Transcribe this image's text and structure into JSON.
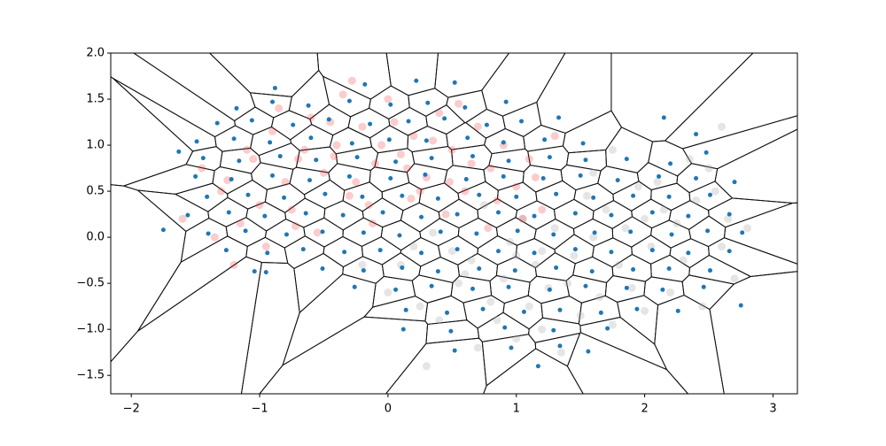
{
  "chart_data": {
    "type": "scatter",
    "xlim": [
      -2.16,
      3.19
    ],
    "ylim": [
      -1.7,
      2.0
    ],
    "xticks": [
      {
        "value": -2,
        "label": "−2"
      },
      {
        "value": -1,
        "label": "−1"
      },
      0,
      1,
      2,
      3
    ],
    "yticks": [
      {
        "value": -1.5,
        "label": "−1.5"
      },
      {
        "value": -1,
        "label": "−1.0"
      },
      {
        "value": -0.5,
        "label": "−0.5"
      },
      {
        "value": 0,
        "label": "0.0"
      },
      0.5,
      {
        "value": 1,
        "label": "1.0"
      },
      1.5,
      {
        "value": 2,
        "label": "2.0"
      }
    ],
    "series": [
      {
        "color": "#aaaaaa",
        "opacity": 0.3,
        "radius": 4.5,
        "x": [
          -0.2,
          0.0,
          0.2,
          0.4,
          0.6,
          0.8,
          1.0,
          1.2,
          1.4,
          1.6,
          1.8,
          2.0,
          2.2,
          2.4,
          2.6,
          2.8,
          0.1,
          0.3,
          0.5,
          0.7,
          0.9,
          1.1,
          1.3,
          1.5,
          1.7,
          1.9,
          2.1,
          2.3,
          2.5,
          2.7,
          0.25,
          0.55,
          0.85,
          1.15,
          1.45,
          1.75,
          2.05,
          2.35,
          2.65,
          1.35,
          0.35,
          0.65,
          0.95,
          1.25,
          1.55,
          1.85,
          2.15,
          2.45,
          1.0,
          1.6,
          1.95,
          2.25,
          2.55,
          1.65,
          1.05,
          0.75,
          2.0,
          1.75,
          2.6,
          1.2
        ],
        "y": [
          -0.3,
          -0.6,
          -0.1,
          -0.9,
          -0.4,
          -0.7,
          -0.2,
          -1.0,
          -0.5,
          0.0,
          -0.3,
          0.2,
          -0.6,
          0.4,
          -0.1,
          0.1,
          -0.3,
          -1.4,
          -0.15,
          -1.2,
          -0.45,
          -0.75,
          0.1,
          -0.85,
          0.3,
          -0.55,
          0.6,
          -0.25,
          0.75,
          -0.45,
          -0.75,
          -0.5,
          -0.9,
          -0.3,
          -0.2,
          -0.95,
          -0.1,
          0.85,
          0.2,
          -1.25,
          0.05,
          -0.25,
          -0.05,
          -0.55,
          0.45,
          0.1,
          0.3,
          -0.75,
          -1.1,
          0.7,
          0.55,
          0.15,
          0.5,
          -0.65,
          0.2,
          0.35,
          -0.8,
          0.95,
          1.2,
          -0.15
        ]
      },
      {
        "color": "#ee3333",
        "opacity": 0.25,
        "radius": 4.5,
        "x": [
          -1.6,
          -1.45,
          -1.3,
          -1.2,
          -1.1,
          -1.0,
          -0.9,
          -0.8,
          -0.7,
          -0.6,
          -0.5,
          -0.4,
          -0.3,
          -0.2,
          -0.1,
          0.0,
          0.1,
          0.2,
          0.3,
          0.4,
          0.5,
          0.6,
          0.7,
          0.8,
          0.9,
          1.0,
          1.1,
          1.2,
          1.3,
          -1.35,
          -1.15,
          -0.95,
          -0.75,
          -0.55,
          -0.35,
          -0.15,
          0.05,
          0.25,
          0.45,
          0.65,
          0.85,
          1.05,
          -0.85,
          -0.65,
          -0.45,
          -0.25,
          -0.05,
          0.15,
          0.35,
          0.55,
          -1.25,
          -1.05,
          -0.72,
          -0.42,
          -0.12,
          0.18,
          0.48,
          0.78,
          1.15,
          -0.28
        ],
        "y": [
          0.2,
          0.75,
          0.5,
          -0.3,
          0.95,
          0.35,
          1.15,
          0.6,
          0.85,
          1.3,
          0.7,
          1.0,
          0.45,
          1.2,
          0.8,
          1.5,
          0.9,
          1.1,
          0.65,
          1.35,
          0.95,
          0.5,
          1.2,
          0.75,
          1.0,
          0.55,
          0.85,
          0.3,
          1.1,
          0.0,
          0.15,
          -0.1,
          0.3,
          0.05,
          1.55,
          0.35,
          1.25,
          0.5,
          0.25,
          0.8,
          0.4,
          0.2,
          1.4,
          0.95,
          1.25,
          0.6,
          1.0,
          0.75,
          1.05,
          1.45,
          0.62,
          0.85,
          0.12,
          0.88,
          0.15,
          0.42,
          0.6,
          0.1,
          0.65,
          1.7
        ]
      },
      {
        "color": "#1f77b4",
        "opacity": 1,
        "radius": 2.5,
        "voronoi": true,
        "x": [
          -0.88,
          -0.18,
          0.22,
          0.52,
          -1.18,
          -0.9,
          -0.62,
          -0.3,
          0.02,
          0.31,
          0.6,
          0.92,
          -1.33,
          -1.06,
          -0.74,
          -0.46,
          -0.14,
          0.16,
          0.44,
          0.77,
          1.04,
          1.33,
          -1.49,
          -1.2,
          -0.92,
          -0.6,
          -0.28,
          0.01,
          0.3,
          0.62,
          0.9,
          1.22,
          1.52,
          -1.44,
          -1.16,
          -0.84,
          -0.56,
          -0.24,
          0.06,
          0.34,
          0.66,
          0.94,
          1.26,
          1.54,
          1.86,
          2.2,
          2.48,
          -1.5,
          -1.22,
          -0.9,
          -0.61,
          -0.3,
          0.02,
          0.29,
          0.61,
          0.9,
          1.21,
          1.5,
          1.79,
          2.11,
          2.4,
          2.7,
          -1.41,
          -1.09,
          -0.81,
          -0.49,
          -0.2,
          0.11,
          0.39,
          0.71,
          1.0,
          1.31,
          1.6,
          1.91,
          2.19,
          2.51,
          -1.56,
          -1.24,
          -0.96,
          -0.64,
          -0.35,
          -0.04,
          0.26,
          0.54,
          0.86,
          1.14,
          1.46,
          1.74,
          2.06,
          2.34,
          2.66,
          -1.4,
          -1.11,
          -0.79,
          -0.51,
          -0.19,
          0.09,
          0.41,
          0.69,
          1.01,
          1.29,
          1.61,
          1.89,
          2.21,
          2.49,
          2.76,
          -1.26,
          -0.94,
          -0.66,
          -0.34,
          -0.06,
          0.26,
          0.54,
          0.86,
          1.14,
          1.46,
          1.74,
          2.06,
          2.34,
          2.66,
          -1.04,
          -0.51,
          -0.19,
          0.11,
          0.39,
          0.71,
          0.99,
          1.31,
          1.59,
          1.91,
          2.19,
          2.51,
          -0.26,
          0.06,
          0.34,
          0.66,
          0.94,
          1.26,
          1.54,
          1.86,
          2.14,
          2.46,
          0.14,
          0.46,
          0.74,
          1.06,
          1.34,
          1.66,
          1.94,
          2.26,
          0.12,
          0.49,
          0.91,
          1.29,
          1.71,
          0.52,
          0.96,
          1.34,
          1.56,
          -1.75,
          -1.63,
          2.15,
          2.75,
          2.4,
          1.17,
          -0.95
        ],
        "y": [
          1.62,
          1.66,
          1.7,
          1.68,
          1.4,
          1.47,
          1.43,
          1.48,
          1.44,
          1.46,
          1.41,
          1.47,
          1.24,
          1.27,
          1.22,
          1.28,
          1.23,
          1.26,
          1.29,
          1.22,
          1.26,
          1.3,
          1.04,
          1.07,
          1.03,
          1.08,
          1.02,
          1.06,
          1.05,
          1.08,
          1.03,
          1.06,
          1.02,
          0.86,
          0.83,
          0.88,
          0.84,
          0.87,
          0.82,
          0.86,
          0.88,
          0.83,
          0.87,
          0.84,
          0.85,
          0.8,
          0.92,
          0.66,
          0.63,
          0.67,
          0.62,
          0.66,
          0.64,
          0.68,
          0.63,
          0.66,
          0.64,
          0.67,
          0.62,
          0.66,
          0.64,
          0.6,
          0.44,
          0.46,
          0.43,
          0.47,
          0.44,
          0.45,
          0.42,
          0.46,
          0.44,
          0.47,
          0.43,
          0.45,
          0.44,
          0.46,
          0.24,
          0.27,
          0.23,
          0.26,
          0.24,
          0.27,
          0.22,
          0.25,
          0.27,
          0.23,
          0.26,
          0.24,
          0.27,
          0.23,
          0.25,
          0.04,
          0.07,
          0.03,
          0.06,
          0.05,
          0.02,
          0.06,
          0.04,
          0.07,
          0.03,
          0.05,
          0.06,
          0.03,
          0.07,
          0.05,
          -0.14,
          -0.17,
          -0.13,
          -0.16,
          -0.14,
          -0.17,
          -0.13,
          -0.15,
          -0.17,
          -0.13,
          -0.16,
          -0.14,
          -0.17,
          -0.15,
          -0.37,
          -0.34,
          -0.36,
          -0.33,
          -0.37,
          -0.34,
          -0.36,
          -0.33,
          -0.37,
          -0.35,
          -0.34,
          -0.36,
          -0.54,
          -0.57,
          -0.53,
          -0.56,
          -0.54,
          -0.57,
          -0.53,
          -0.55,
          -0.57,
          -0.54,
          -0.79,
          -0.82,
          -0.78,
          -0.81,
          -0.79,
          -0.82,
          -0.78,
          -0.8,
          -1.0,
          -1.02,
          -0.98,
          -1.01,
          -0.99,
          -1.23,
          -1.2,
          -1.18,
          -1.24,
          0.08,
          0.93,
          1.3,
          -0.74,
          1.12,
          -1.4,
          -0.38
        ]
      }
    ]
  }
}
